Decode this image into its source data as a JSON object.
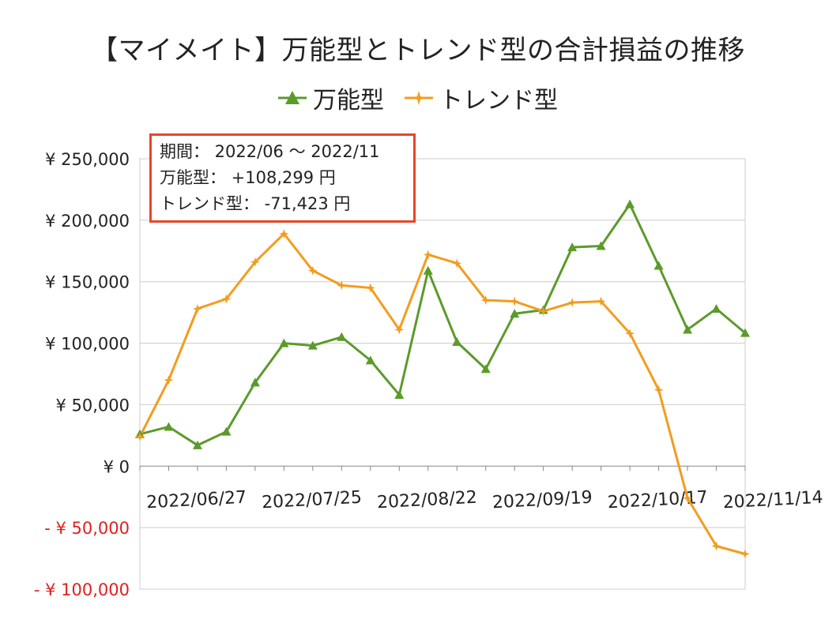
{
  "chart_data": {
    "type": "line",
    "title": "【マイメイト】万能型とトレンド型の合計損益の推移",
    "ylim": [
      -100000,
      250000
    ],
    "yticks": [
      {
        "value": 250000,
        "label": "¥ 250,000",
        "negative": false
      },
      {
        "value": 200000,
        "label": "¥ 200,000",
        "negative": false
      },
      {
        "value": 150000,
        "label": "¥ 150,000",
        "negative": false
      },
      {
        "value": 100000,
        "label": "¥ 100,000",
        "negative": false
      },
      {
        "value": 50000,
        "label": "¥ 50,000",
        "negative": false
      },
      {
        "value": 0,
        "label": "¥ 0",
        "negative": false
      },
      {
        "value": -50000,
        "label": "- ¥ 50,000",
        "negative": true
      },
      {
        "value": -100000,
        "label": "- ¥ 100,000",
        "negative": true
      }
    ],
    "xtick_labels": [
      {
        "index": 0,
        "label": "2022/06/27"
      },
      {
        "index": 4,
        "label": "2022/07/25"
      },
      {
        "index": 8,
        "label": "2022/08/22"
      },
      {
        "index": 12,
        "label": "2022/09/19"
      },
      {
        "index": 16,
        "label": "2022/10/17"
      },
      {
        "index": 20,
        "label": "2022/11/14"
      }
    ],
    "n_points": 22,
    "series": [
      {
        "name": "万能型",
        "color": "#5b9b2a",
        "marker": "triangle",
        "values": [
          26000,
          32000,
          17000,
          28000,
          68000,
          100000,
          98000,
          105000,
          86000,
          58000,
          159000,
          101000,
          79000,
          124000,
          127000,
          178000,
          179000,
          213000,
          163000,
          111000,
          128000,
          108299
        ]
      },
      {
        "name": "トレンド型",
        "color": "#f39c1f",
        "marker": "star",
        "values": [
          24000,
          70000,
          128000,
          136000,
          166000,
          189000,
          159000,
          147000,
          145000,
          111000,
          172000,
          165000,
          135000,
          134000,
          126000,
          133000,
          134000,
          108000,
          62000,
          -26000,
          -65000,
          -71423
        ]
      }
    ],
    "grid": true
  },
  "legend": {
    "items": [
      {
        "name": "万能型",
        "color": "#5b9b2a"
      },
      {
        "name": "トレンド型",
        "color": "#f39c1f"
      }
    ]
  },
  "info": {
    "period": "期間： 2022/06 ～ 2022/11",
    "allround": "万能型： +108,299 円",
    "trend": "トレンド型： -71,423 円"
  },
  "colors": {
    "negative_label": "#e02020",
    "grid": "#cccccc",
    "box_border": "#e8462a"
  }
}
